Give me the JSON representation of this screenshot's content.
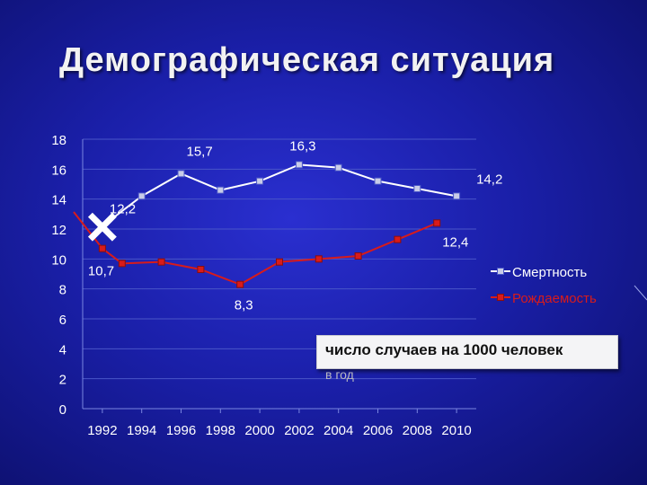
{
  "slide": {
    "title": "Демографическая ситуация"
  },
  "note": {
    "line1": "число случаев на 1000 человек",
    "line2": "в год"
  },
  "chart_data": {
    "type": "line",
    "categories": [
      "1992",
      "1994",
      "1996",
      "1998",
      "2000",
      "2002",
      "2004",
      "2006",
      "2008",
      "2010"
    ],
    "x": [
      1992,
      1993,
      1994,
      1995,
      1996,
      1997,
      1998,
      1999,
      2000,
      2001,
      2002,
      2003,
      2004,
      2005,
      2006,
      2007,
      2008,
      2009,
      2010
    ],
    "ylim": [
      0,
      18
    ],
    "yticks": [
      "0",
      "2",
      "4",
      "6",
      "8",
      "10",
      "12",
      "14",
      "16",
      "18"
    ],
    "grid": true,
    "legend_position": "right",
    "series": [
      {
        "name": "Смертность",
        "color": "#ffffff",
        "points": [
          [
            1992,
            12.2
          ],
          [
            1994,
            14.2
          ],
          [
            1996,
            15.7
          ],
          [
            1998,
            14.6
          ],
          [
            2000,
            15.2
          ],
          [
            2002,
            16.3
          ],
          [
            2004,
            16.1
          ],
          [
            2006,
            15.2
          ],
          [
            2008,
            14.7
          ],
          [
            2010,
            14.2
          ]
        ],
        "labels": [
          {
            "x": 1992,
            "text": "12,2"
          },
          {
            "x": 1996,
            "text": "15,7"
          },
          {
            "x": 2002,
            "text": "16,3"
          },
          {
            "x": 2010,
            "text": "14,2"
          }
        ]
      },
      {
        "name": "Рождаемость",
        "color": "#d81b1b",
        "points": [
          [
            1992,
            10.7
          ],
          [
            1993,
            9.7
          ],
          [
            1995,
            9.8
          ],
          [
            1997,
            9.3
          ],
          [
            1999,
            8.3
          ],
          [
            2001,
            9.8
          ],
          [
            2003,
            10.0
          ],
          [
            2005,
            10.2
          ],
          [
            2007,
            11.3
          ],
          [
            2009,
            12.4
          ]
        ],
        "labels": [
          {
            "x": 1992,
            "text": "10,7"
          },
          {
            "x": 1999,
            "text": "8,3"
          },
          {
            "x": 2009,
            "text": "12,4"
          }
        ]
      }
    ]
  }
}
